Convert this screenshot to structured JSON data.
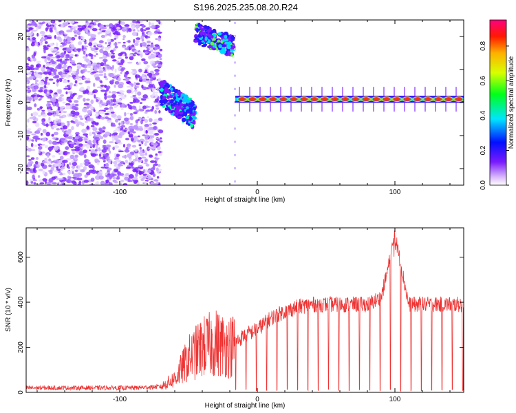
{
  "title": "S196.2025.235.08.20.R24",
  "chart_data": [
    {
      "type": "heatmap",
      "xlabel": "Height of straight line (km)",
      "ylabel": "Frequency (Hz)",
      "xlim": [
        -168,
        150
      ],
      "ylim": [
        -25,
        25
      ],
      "xticks": [
        -100,
        0,
        100
      ],
      "xtick_labels": [
        "-100",
        "0",
        "100"
      ],
      "yticks": [
        20,
        10,
        0,
        -10,
        -20
      ],
      "ytick_labels": [
        "20",
        "10",
        "0",
        "-10",
        "-20"
      ],
      "colorbar": {
        "label": "Normalized spectral amplitude",
        "range": [
          0.0,
          0.95
        ],
        "ticks": [
          0.0,
          0.2,
          0.4,
          0.6,
          0.8
        ],
        "tick_labels": [
          "0.0",
          "0.2",
          "0.4",
          "0.6",
          "0.8"
        ]
      },
      "regions": [
        {
          "name": "noise",
          "x_range": [
            -168,
            -70
          ],
          "freq_range": [
            -25,
            25
          ],
          "amplitude": 0.05
        },
        {
          "name": "cluster-low",
          "x_range": [
            -70,
            -45
          ],
          "freq_range": [
            -6,
            6
          ],
          "amplitude": 0.35
        },
        {
          "name": "cluster-high",
          "x_range": [
            -45,
            -17
          ],
          "freq_range": [
            15,
            23
          ],
          "amplitude": 0.4
        },
        {
          "name": "carrier-line",
          "x_range": [
            -16,
            150
          ],
          "freq": 1,
          "amplitude": 0.85
        }
      ]
    },
    {
      "type": "line",
      "xlabel": "Height of straight line (km)",
      "ylabel": "SNR (10 * v/v)",
      "xlim": [
        -168,
        150
      ],
      "ylim": [
        0,
        730
      ],
      "xticks": [
        -100,
        0,
        100
      ],
      "xtick_labels": [
        "-100",
        "0",
        "100"
      ],
      "yticks": [
        0,
        200,
        400,
        600
      ],
      "ytick_labels": [
        "0",
        "200",
        "400",
        "600"
      ],
      "series": [
        {
          "name": "SNR",
          "color": "#ee3333",
          "x": [
            -168,
            -150,
            -130,
            -110,
            -90,
            -70,
            -60,
            -50,
            -40,
            -30,
            -20,
            -10,
            0,
            10,
            20,
            30,
            40,
            50,
            60,
            70,
            80,
            90,
            95,
            100,
            110,
            120,
            130,
            140,
            150
          ],
          "y": [
            20,
            20,
            20,
            20,
            20,
            25,
            60,
            150,
            200,
            220,
            200,
            250,
            280,
            330,
            360,
            380,
            390,
            390,
            390,
            390,
            390,
            420,
            550,
            700,
            390,
            390,
            390,
            390,
            390
          ]
        }
      ]
    }
  ]
}
